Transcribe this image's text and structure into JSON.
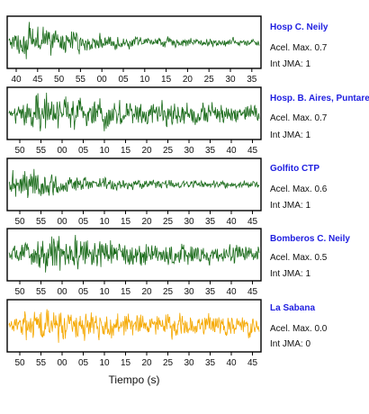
{
  "chart_data": {
    "type": "line",
    "xlabel": "Tiempo (s)",
    "panels": [
      {
        "name": "Hosp C. Neily",
        "acel_label": "Acel. Max. 0.7",
        "int_label": "Int JMA: 1",
        "color": "#1a6b1a",
        "x_ticks": [
          "40",
          "45",
          "50",
          "55",
          "00",
          "05",
          "10",
          "15",
          "20",
          "25",
          "30",
          "35"
        ],
        "amplitude_envelope": {
          "peak_at_fraction": 0.08,
          "decay": "exponential"
        }
      },
      {
        "name": "Hosp. B. Aires, Puntare",
        "acel_label": "Acel. Max. 0.7",
        "int_label": "Int JMA: 1",
        "color": "#1a6b1a",
        "x_ticks": [
          "50",
          "55",
          "00",
          "05",
          "10",
          "15",
          "20",
          "25",
          "30",
          "35",
          "40",
          "45"
        ],
        "amplitude_envelope": {
          "peak_at_fraction": 0.1,
          "decay": "slow"
        }
      },
      {
        "name": "Golfito CTP",
        "acel_label": "Acel. Max. 0.6",
        "int_label": "Int JMA: 1",
        "color": "#1a6b1a",
        "x_ticks": [
          "50",
          "55",
          "00",
          "05",
          "10",
          "15",
          "20",
          "25",
          "30",
          "35",
          "40",
          "45"
        ],
        "amplitude_envelope": {
          "peak_at_fraction": 0.02,
          "decay": "exponential"
        }
      },
      {
        "name": "Bomberos C. Neily",
        "acel_label": "Acel. Max. 0.5",
        "int_label": "Int JMA: 1",
        "color": "#1a6b1a",
        "x_ticks": [
          "50",
          "55",
          "00",
          "05",
          "10",
          "15",
          "20",
          "25",
          "30",
          "35",
          "40",
          "45"
        ],
        "amplitude_envelope": {
          "peak_at_fraction": 0.15,
          "decay": "slow"
        }
      },
      {
        "name": "La Sabana",
        "acel_label": "Acel. Max. 0.0",
        "int_label": "Int JMA: 0",
        "color": "#f5a800",
        "x_ticks": [
          "50",
          "55",
          "00",
          "05",
          "10",
          "15",
          "20",
          "25",
          "30",
          "35",
          "40",
          "45"
        ],
        "amplitude_envelope": {
          "peak_at_fraction": 0.1,
          "decay": "slow"
        }
      }
    ]
  }
}
